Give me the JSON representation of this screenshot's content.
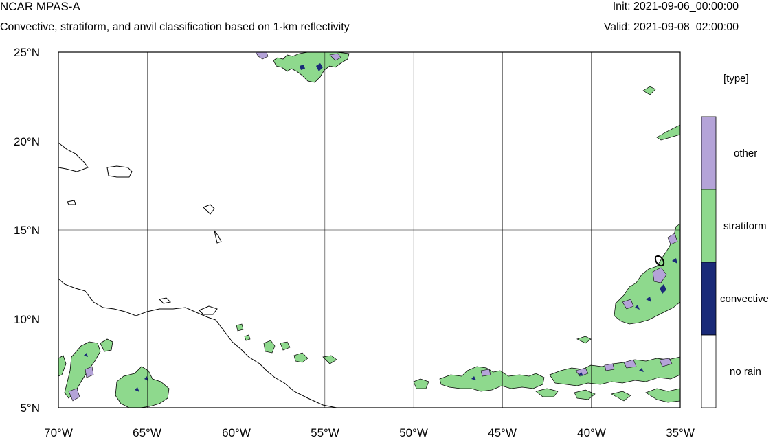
{
  "header": {
    "title": "NCAR MPAS-A",
    "subtitle": "Convective, stratiform, and anvil classification based on 1-km reflectivity",
    "init": "Init: 2021-09-06_00:00:00",
    "valid": "Valid: 2021-09-08_02:00:00"
  },
  "map": {
    "lon_range": [
      -70,
      -35
    ],
    "lat_range": [
      5,
      25
    ],
    "lon_ticks": [
      {
        "value": -70,
        "label": "70°W"
      },
      {
        "value": -65,
        "label": "65°W"
      },
      {
        "value": -60,
        "label": "60°W"
      },
      {
        "value": -55,
        "label": "55°W"
      },
      {
        "value": -50,
        "label": "50°W"
      },
      {
        "value": -45,
        "label": "45°W"
      },
      {
        "value": -40,
        "label": "40°W"
      },
      {
        "value": -35,
        "label": "35°W"
      }
    ],
    "lat_ticks": [
      {
        "value": 25,
        "label": "25°N"
      },
      {
        "value": 20,
        "label": "20°N"
      },
      {
        "value": 15,
        "label": "15°N"
      },
      {
        "value": 10,
        "label": "10°N"
      },
      {
        "value": 5,
        "label": "5°N"
      }
    ],
    "gridlines": true
  },
  "legend": {
    "title": "[type]",
    "items": [
      {
        "label": "other",
        "color": "#b4a3d8"
      },
      {
        "label": "stratiform",
        "color": "#8ed98d"
      },
      {
        "label": "convective",
        "color": "#1a2a78"
      },
      {
        "label": "no rain",
        "color": "#ffffff"
      }
    ]
  },
  "colors": {
    "stratiform": "#8ed98d",
    "other": "#b4a3d8",
    "convective": "#1a2a78",
    "coastline": "#000000",
    "grid": "#000000"
  }
}
